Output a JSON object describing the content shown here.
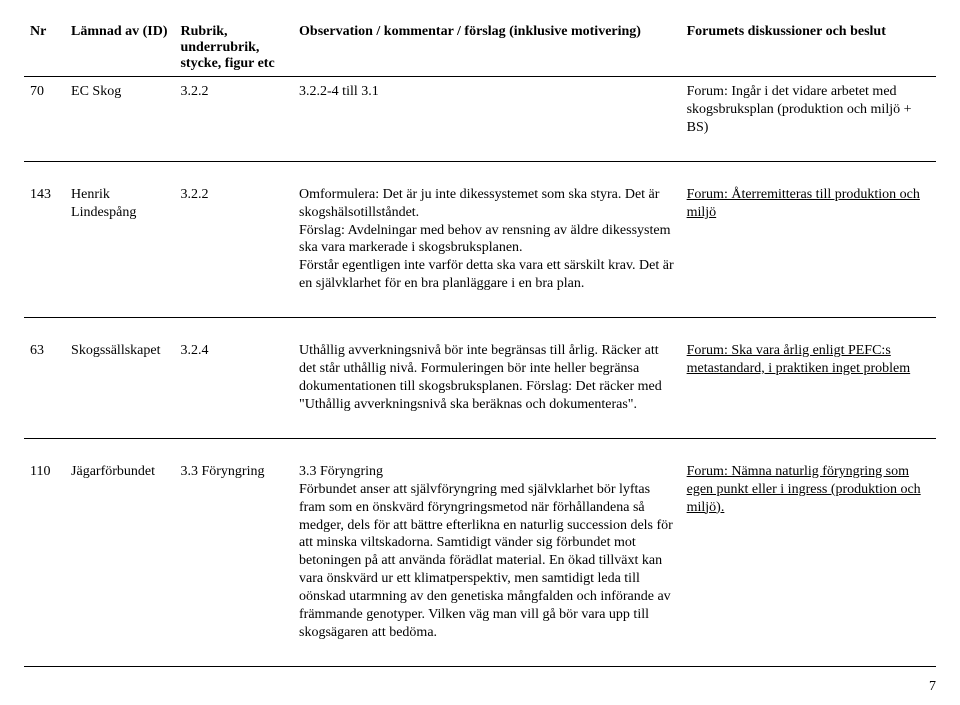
{
  "headers": {
    "nr": "Nr",
    "id": "Lämnad av (ID)",
    "rubrik": "Rubrik, underrubrik, stycke, figur etc",
    "obs": "Observation / kommentar / förslag (inklusive motivering)",
    "forum": "Forumets diskussioner och beslut"
  },
  "rows": [
    {
      "nr": "70",
      "id": "EC Skog",
      "rubrik": "3.2.2",
      "obs": "3.2.2-4 till 3.1",
      "forum_pre": "Forum: Ingår i det vidare arbetet med skogsbruksplan (produktion och miljö + BS)",
      "forum_u": "",
      "forum_post": ""
    },
    {
      "nr": "143",
      "id": "Henrik Lindespång",
      "rubrik": "3.2.2",
      "obs": "Omformulera: Det är ju inte dikessystemet som ska styra. Det är skogshälsotillståndet.\nFörslag: Avdelningar med behov av rensning av äldre dikessystem ska vara markerade i skogsbruksplanen.\nFörstår egentligen inte varför detta ska vara ett särskilt krav. Det är en självklarhet för en bra planläggare i en bra plan.",
      "forum_pre": "",
      "forum_u": "Forum: Återremitteras till produktion och miljö",
      "forum_post": ""
    },
    {
      "nr": "63",
      "id": "Skogssällskapet",
      "rubrik": "3.2.4",
      "obs": "Uthållig avverkningsnivå bör inte begränsas till årlig. Räcker att det står uthållig nivå. Formuleringen bör inte heller begränsa dokumentationen till skogsbruksplanen. Förslag: Det räcker med \"Uthållig avverkningsnivå ska beräknas och dokumenteras\".",
      "forum_pre": "",
      "forum_u": "Forum: Ska vara årlig enligt PEFC:s metastandard, i praktiken inget problem",
      "forum_post": ""
    },
    {
      "nr": "110",
      "id": "Jägarförbundet",
      "rubrik": "3.3 Föryngring",
      "obs": "3.3 Föryngring\nFörbundet anser att självföryngring med självklarhet bör lyftas fram som en önskvärd föryngringsmetod när förhållandena så medger, dels för att bättre efterlikna en naturlig succession dels för att minska viltskadorna. Samtidigt vänder sig förbundet mot betoningen på att använda förädlat material. En ökad tillväxt kan vara önskvärd ur ett klimatperspektiv, men samtidigt leda till oönskad utarmning av den genetiska mångfalden och införande av främmande genotyper. Vilken väg man vill gå bör vara upp till skogsägaren att bedöma.",
      "forum_pre": "",
      "forum_u": "Forum: Nämna naturlig föryngring som egen punkt eller i ingress (produktion och miljö).",
      "forum_post": ""
    }
  ],
  "page_number": "7"
}
